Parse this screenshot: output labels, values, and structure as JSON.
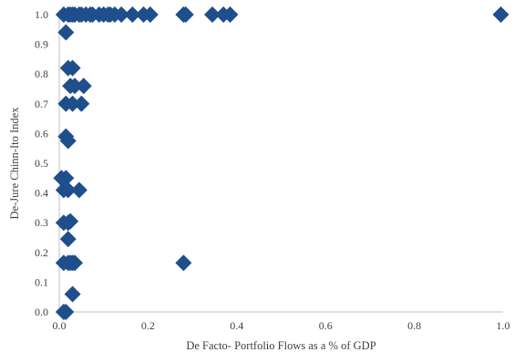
{
  "chart_data": {
    "type": "scatter",
    "title": "",
    "xlabel": "De Facto- Portfolio Flows as a % of GDP",
    "ylabel": "De-Jure Chinn-Ito Index",
    "xlim": [
      0,
      1
    ],
    "ylim": [
      0,
      1
    ],
    "x_ticks": [
      "0.0",
      "0.2",
      "0.4",
      "0.6",
      "0.8",
      "1.0"
    ],
    "y_ticks": [
      "0.0",
      "0.1",
      "0.2",
      "0.3",
      "0.4",
      "0.5",
      "0.6",
      "0.7",
      "0.8",
      "0.9",
      "1.0"
    ],
    "grid": false,
    "marker": "diamond",
    "color": "#1f4e8c",
    "series": [
      {
        "points": [
          {
            "x": 0.01,
            "y": 1.0
          },
          {
            "x": 0.02,
            "y": 1.0
          },
          {
            "x": 0.025,
            "y": 1.0
          },
          {
            "x": 0.03,
            "y": 1.0
          },
          {
            "x": 0.035,
            "y": 1.0
          },
          {
            "x": 0.045,
            "y": 1.0
          },
          {
            "x": 0.05,
            "y": 1.0
          },
          {
            "x": 0.06,
            "y": 1.0
          },
          {
            "x": 0.07,
            "y": 1.0
          },
          {
            "x": 0.075,
            "y": 1.0
          },
          {
            "x": 0.09,
            "y": 1.0
          },
          {
            "x": 0.1,
            "y": 1.0
          },
          {
            "x": 0.11,
            "y": 1.0
          },
          {
            "x": 0.115,
            "y": 1.0
          },
          {
            "x": 0.125,
            "y": 1.0
          },
          {
            "x": 0.14,
            "y": 1.0
          },
          {
            "x": 0.165,
            "y": 1.0
          },
          {
            "x": 0.19,
            "y": 1.0
          },
          {
            "x": 0.205,
            "y": 1.0
          },
          {
            "x": 0.28,
            "y": 1.0
          },
          {
            "x": 0.285,
            "y": 1.0
          },
          {
            "x": 0.345,
            "y": 1.0
          },
          {
            "x": 0.37,
            "y": 1.0
          },
          {
            "x": 0.385,
            "y": 1.0
          },
          {
            "x": 0.995,
            "y": 1.0
          },
          {
            "x": 0.015,
            "y": 0.94
          },
          {
            "x": 0.02,
            "y": 0.82
          },
          {
            "x": 0.03,
            "y": 0.82
          },
          {
            "x": 0.025,
            "y": 0.76
          },
          {
            "x": 0.035,
            "y": 0.76
          },
          {
            "x": 0.055,
            "y": 0.76
          },
          {
            "x": 0.015,
            "y": 0.7
          },
          {
            "x": 0.03,
            "y": 0.7
          },
          {
            "x": 0.05,
            "y": 0.7
          },
          {
            "x": 0.015,
            "y": 0.59
          },
          {
            "x": 0.02,
            "y": 0.575
          },
          {
            "x": 0.005,
            "y": 0.45
          },
          {
            "x": 0.015,
            "y": 0.45
          },
          {
            "x": 0.01,
            "y": 0.41
          },
          {
            "x": 0.02,
            "y": 0.41
          },
          {
            "x": 0.045,
            "y": 0.41
          },
          {
            "x": 0.01,
            "y": 0.3
          },
          {
            "x": 0.02,
            "y": 0.3
          },
          {
            "x": 0.025,
            "y": 0.305
          },
          {
            "x": 0.02,
            "y": 0.245
          },
          {
            "x": 0.01,
            "y": 0.165
          },
          {
            "x": 0.02,
            "y": 0.165
          },
          {
            "x": 0.025,
            "y": 0.165
          },
          {
            "x": 0.03,
            "y": 0.165
          },
          {
            "x": 0.035,
            "y": 0.165
          },
          {
            "x": 0.28,
            "y": 0.165
          },
          {
            "x": 0.03,
            "y": 0.06
          },
          {
            "x": 0.01,
            "y": 0.0
          },
          {
            "x": 0.015,
            "y": 0.0
          }
        ]
      }
    ]
  }
}
